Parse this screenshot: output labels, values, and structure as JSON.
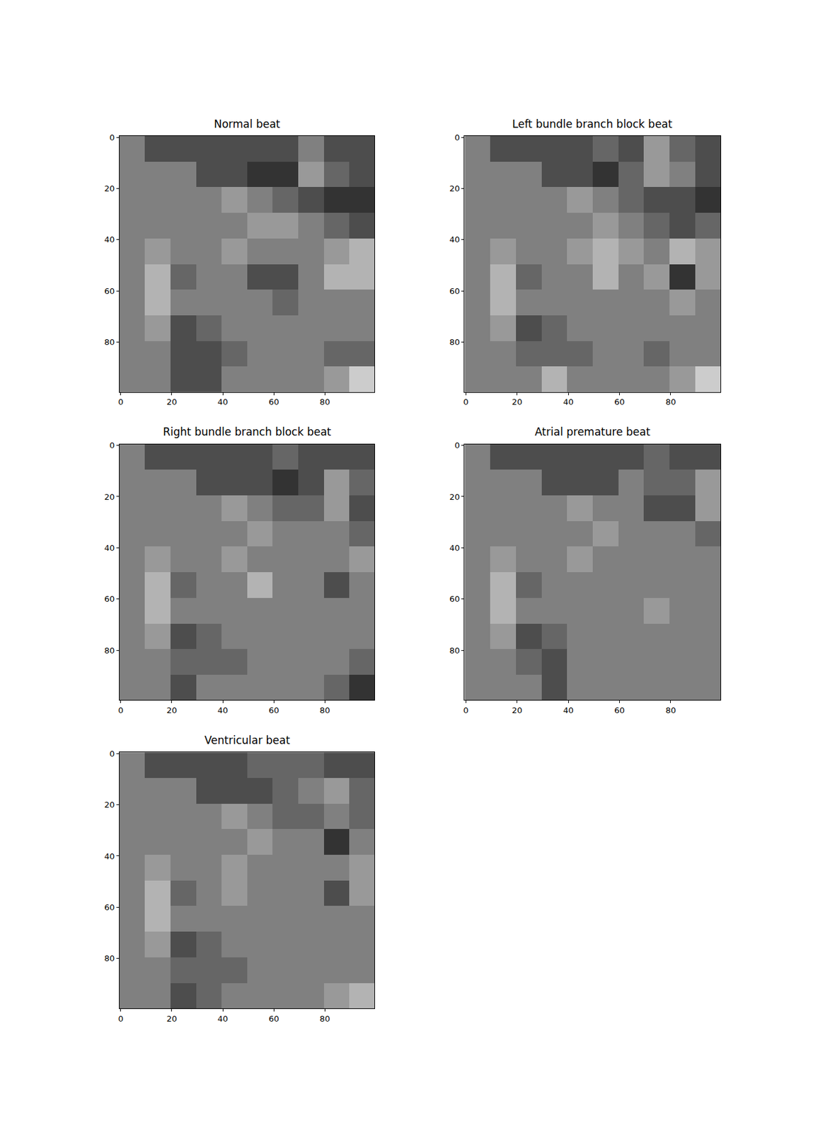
{
  "chart_data": [
    {
      "type": "heatmap",
      "title": "Normal beat",
      "x": [
        4.5,
        14.5,
        24.5,
        34.5,
        44.5,
        54.5,
        64.5,
        74.5,
        84.5,
        94.5
      ],
      "y": [
        4.5,
        14.5,
        24.5,
        34.5,
        44.5,
        54.5,
        64.5,
        74.5,
        84.5,
        94.5
      ],
      "z": [
        [
          0.5,
          0.3,
          0.3,
          0.3,
          0.3,
          0.3,
          0.3,
          0.5,
          0.3,
          0.3
        ],
        [
          0.5,
          0.5,
          0.5,
          0.3,
          0.3,
          0.2,
          0.2,
          0.6,
          0.4,
          0.3
        ],
        [
          0.5,
          0.5,
          0.5,
          0.5,
          0.6,
          0.5,
          0.4,
          0.3,
          0.2,
          0.2
        ],
        [
          0.5,
          0.5,
          0.5,
          0.5,
          0.5,
          0.6,
          0.6,
          0.5,
          0.4,
          0.3
        ],
        [
          0.5,
          0.6,
          0.5,
          0.5,
          0.6,
          0.5,
          0.5,
          0.5,
          0.6,
          0.7
        ],
        [
          0.5,
          0.7,
          0.4,
          0.5,
          0.5,
          0.3,
          0.3,
          0.5,
          0.7,
          0.7
        ],
        [
          0.5,
          0.7,
          0.5,
          0.5,
          0.5,
          0.5,
          0.4,
          0.5,
          0.5,
          0.5
        ],
        [
          0.5,
          0.6,
          0.3,
          0.4,
          0.5,
          0.5,
          0.5,
          0.5,
          0.5,
          0.5
        ],
        [
          0.5,
          0.5,
          0.3,
          0.3,
          0.4,
          0.5,
          0.5,
          0.5,
          0.4,
          0.4
        ],
        [
          0.5,
          0.5,
          0.3,
          0.3,
          0.5,
          0.5,
          0.5,
          0.5,
          0.6,
          0.8
        ]
      ],
      "zlim": [
        0,
        1
      ],
      "xlim": [
        -0.5,
        99.5
      ],
      "ylim": [
        99.5,
        -0.5
      ],
      "xticks": [
        0,
        20,
        40,
        60,
        80
      ],
      "yticks": [
        0,
        20,
        40,
        60,
        80
      ],
      "grid": false
    },
    {
      "type": "heatmap",
      "title": "Left bundle branch block beat",
      "x": [
        4.5,
        14.5,
        24.5,
        34.5,
        44.5,
        54.5,
        64.5,
        74.5,
        84.5,
        94.5
      ],
      "y": [
        4.5,
        14.5,
        24.5,
        34.5,
        44.5,
        54.5,
        64.5,
        74.5,
        84.5,
        94.5
      ],
      "z": [
        [
          0.5,
          0.3,
          0.3,
          0.3,
          0.3,
          0.4,
          0.3,
          0.6,
          0.4,
          0.3
        ],
        [
          0.5,
          0.5,
          0.5,
          0.3,
          0.3,
          0.2,
          0.4,
          0.6,
          0.5,
          0.3
        ],
        [
          0.5,
          0.5,
          0.5,
          0.5,
          0.6,
          0.5,
          0.4,
          0.3,
          0.3,
          0.2
        ],
        [
          0.5,
          0.5,
          0.5,
          0.5,
          0.5,
          0.6,
          0.5,
          0.4,
          0.3,
          0.4
        ],
        [
          0.5,
          0.6,
          0.5,
          0.5,
          0.6,
          0.7,
          0.6,
          0.5,
          0.7,
          0.6
        ],
        [
          0.5,
          0.7,
          0.4,
          0.5,
          0.5,
          0.7,
          0.5,
          0.6,
          0.2,
          0.6
        ],
        [
          0.5,
          0.7,
          0.5,
          0.5,
          0.5,
          0.5,
          0.5,
          0.5,
          0.6,
          0.5
        ],
        [
          0.5,
          0.6,
          0.3,
          0.4,
          0.5,
          0.5,
          0.5,
          0.5,
          0.5,
          0.5
        ],
        [
          0.5,
          0.5,
          0.4,
          0.4,
          0.4,
          0.5,
          0.5,
          0.4,
          0.5,
          0.5
        ],
        [
          0.5,
          0.5,
          0.5,
          0.7,
          0.5,
          0.5,
          0.5,
          0.5,
          0.6,
          0.8
        ]
      ],
      "zlim": [
        0,
        1
      ],
      "xlim": [
        -0.5,
        99.5
      ],
      "ylim": [
        99.5,
        -0.5
      ],
      "xticks": [
        0,
        20,
        40,
        60,
        80
      ],
      "yticks": [
        0,
        20,
        40,
        60,
        80
      ],
      "grid": false
    },
    {
      "type": "heatmap",
      "title": "Right bundle branch block beat",
      "x": [
        4.5,
        14.5,
        24.5,
        34.5,
        44.5,
        54.5,
        64.5,
        74.5,
        84.5,
        94.5
      ],
      "y": [
        4.5,
        14.5,
        24.5,
        34.5,
        44.5,
        54.5,
        64.5,
        74.5,
        84.5,
        94.5
      ],
      "z": [
        [
          0.5,
          0.3,
          0.3,
          0.3,
          0.3,
          0.3,
          0.4,
          0.3,
          0.3,
          0.3
        ],
        [
          0.5,
          0.5,
          0.5,
          0.3,
          0.3,
          0.3,
          0.2,
          0.3,
          0.6,
          0.4
        ],
        [
          0.5,
          0.5,
          0.5,
          0.5,
          0.6,
          0.5,
          0.4,
          0.4,
          0.6,
          0.3
        ],
        [
          0.5,
          0.5,
          0.5,
          0.5,
          0.5,
          0.6,
          0.5,
          0.5,
          0.5,
          0.4
        ],
        [
          0.5,
          0.6,
          0.5,
          0.5,
          0.6,
          0.5,
          0.5,
          0.5,
          0.5,
          0.6
        ],
        [
          0.5,
          0.7,
          0.4,
          0.5,
          0.5,
          0.7,
          0.5,
          0.5,
          0.3,
          0.5
        ],
        [
          0.5,
          0.7,
          0.5,
          0.5,
          0.5,
          0.5,
          0.5,
          0.5,
          0.5,
          0.5
        ],
        [
          0.5,
          0.6,
          0.3,
          0.4,
          0.5,
          0.5,
          0.5,
          0.5,
          0.5,
          0.5
        ],
        [
          0.5,
          0.5,
          0.4,
          0.4,
          0.4,
          0.5,
          0.5,
          0.5,
          0.5,
          0.4
        ],
        [
          0.5,
          0.5,
          0.3,
          0.5,
          0.5,
          0.5,
          0.5,
          0.5,
          0.4,
          0.2
        ]
      ],
      "zlim": [
        0,
        1
      ],
      "xlim": [
        -0.5,
        99.5
      ],
      "ylim": [
        99.5,
        -0.5
      ],
      "xticks": [
        0,
        20,
        40,
        60,
        80
      ],
      "yticks": [
        0,
        20,
        40,
        60,
        80
      ],
      "grid": false
    },
    {
      "type": "heatmap",
      "title": "Atrial premature beat",
      "x": [
        4.5,
        14.5,
        24.5,
        34.5,
        44.5,
        54.5,
        64.5,
        74.5,
        84.5,
        94.5
      ],
      "y": [
        4.5,
        14.5,
        24.5,
        34.5,
        44.5,
        54.5,
        64.5,
        74.5,
        84.5,
        94.5
      ],
      "z": [
        [
          0.5,
          0.3,
          0.3,
          0.3,
          0.3,
          0.3,
          0.3,
          0.4,
          0.3,
          0.3
        ],
        [
          0.5,
          0.5,
          0.5,
          0.3,
          0.3,
          0.3,
          0.5,
          0.4,
          0.4,
          0.6
        ],
        [
          0.5,
          0.5,
          0.5,
          0.5,
          0.6,
          0.5,
          0.5,
          0.3,
          0.3,
          0.6
        ],
        [
          0.5,
          0.5,
          0.5,
          0.5,
          0.5,
          0.6,
          0.5,
          0.5,
          0.5,
          0.4
        ],
        [
          0.5,
          0.6,
          0.5,
          0.5,
          0.6,
          0.5,
          0.5,
          0.5,
          0.5,
          0.5
        ],
        [
          0.5,
          0.7,
          0.4,
          0.5,
          0.5,
          0.5,
          0.5,
          0.5,
          0.5,
          0.5
        ],
        [
          0.5,
          0.7,
          0.5,
          0.5,
          0.5,
          0.5,
          0.5,
          0.6,
          0.5,
          0.5
        ],
        [
          0.5,
          0.6,
          0.3,
          0.4,
          0.5,
          0.5,
          0.5,
          0.5,
          0.5,
          0.5
        ],
        [
          0.5,
          0.5,
          0.4,
          0.3,
          0.5,
          0.5,
          0.5,
          0.5,
          0.5,
          0.5
        ],
        [
          0.5,
          0.5,
          0.5,
          0.3,
          0.5,
          0.5,
          0.5,
          0.5,
          0.5,
          0.5
        ]
      ],
      "zlim": [
        0,
        1
      ],
      "xlim": [
        -0.5,
        99.5
      ],
      "ylim": [
        99.5,
        -0.5
      ],
      "xticks": [
        0,
        20,
        40,
        60,
        80
      ],
      "yticks": [
        0,
        20,
        40,
        60,
        80
      ],
      "grid": false
    },
    {
      "type": "heatmap",
      "title": "Ventricular beat",
      "x": [
        4.5,
        14.5,
        24.5,
        34.5,
        44.5,
        54.5,
        64.5,
        74.5,
        84.5,
        94.5
      ],
      "y": [
        4.5,
        14.5,
        24.5,
        34.5,
        44.5,
        54.5,
        64.5,
        74.5,
        84.5,
        94.5
      ],
      "z": [
        [
          0.5,
          0.3,
          0.3,
          0.3,
          0.3,
          0.4,
          0.4,
          0.4,
          0.3,
          0.3
        ],
        [
          0.5,
          0.5,
          0.5,
          0.3,
          0.3,
          0.3,
          0.4,
          0.5,
          0.6,
          0.4
        ],
        [
          0.5,
          0.5,
          0.5,
          0.5,
          0.6,
          0.5,
          0.4,
          0.4,
          0.5,
          0.4
        ],
        [
          0.5,
          0.5,
          0.5,
          0.5,
          0.5,
          0.6,
          0.5,
          0.5,
          0.2,
          0.5
        ],
        [
          0.5,
          0.6,
          0.5,
          0.5,
          0.6,
          0.5,
          0.5,
          0.5,
          0.5,
          0.6
        ],
        [
          0.5,
          0.7,
          0.4,
          0.5,
          0.6,
          0.5,
          0.5,
          0.5,
          0.3,
          0.6
        ],
        [
          0.5,
          0.7,
          0.5,
          0.5,
          0.5,
          0.5,
          0.5,
          0.5,
          0.5,
          0.5
        ],
        [
          0.5,
          0.6,
          0.3,
          0.4,
          0.5,
          0.5,
          0.5,
          0.5,
          0.5,
          0.5
        ],
        [
          0.5,
          0.5,
          0.4,
          0.4,
          0.4,
          0.5,
          0.5,
          0.5,
          0.5,
          0.5
        ],
        [
          0.5,
          0.5,
          0.3,
          0.4,
          0.5,
          0.5,
          0.5,
          0.5,
          0.6,
          0.7
        ]
      ],
      "zlim": [
        0,
        1
      ],
      "xlim": [
        -0.5,
        99.5
      ],
      "ylim": [
        99.5,
        -0.5
      ],
      "xticks": [
        0,
        20,
        40,
        60,
        80
      ],
      "yticks": [
        0,
        20,
        40,
        60,
        80
      ],
      "grid": false
    }
  ]
}
